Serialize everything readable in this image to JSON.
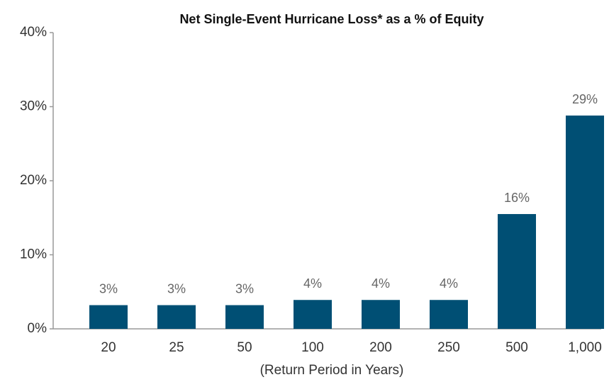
{
  "chart_data": {
    "type": "bar",
    "title": "Net Single-Event Hurricane Loss* as a % of Equity",
    "x_label": "(Return Period in Years)",
    "categories": [
      "20",
      "25",
      "50",
      "100",
      "200",
      "250",
      "500",
      "1,000"
    ],
    "values": [
      3.2,
      3.2,
      3.2,
      3.9,
      3.9,
      3.9,
      15.5,
      28.8
    ],
    "value_labels": [
      "3%",
      "3%",
      "3%",
      "4%",
      "4%",
      "4%",
      "16%",
      "29%"
    ],
    "color": "#004f74",
    "ylim": [
      0,
      40
    ],
    "yticks": [
      {
        "value": 0,
        "label": "0%"
      },
      {
        "value": 10,
        "label": "10%"
      },
      {
        "value": 20,
        "label": "20%"
      },
      {
        "value": 30,
        "label": "30%"
      },
      {
        "value": 40,
        "label": "40%"
      }
    ],
    "grid": false
  }
}
